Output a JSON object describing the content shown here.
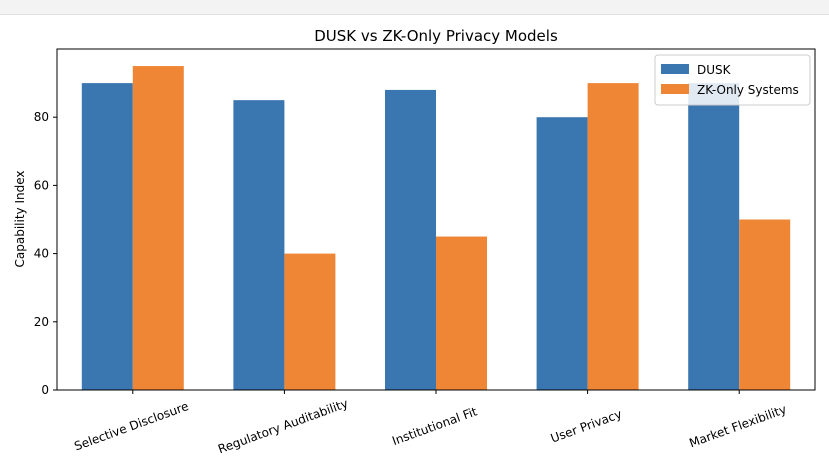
{
  "chart_data": {
    "type": "bar",
    "title": "DUSK vs ZK-Only Privacy Models",
    "xlabel": "",
    "ylabel": "Capability Index",
    "categories": [
      "Selective Disclosure",
      "Regulatory Auditability",
      "Institutional Fit",
      "User Privacy",
      "Market Flexibility"
    ],
    "series": [
      {
        "name": "DUSK",
        "color": "#3a76af",
        "values": [
          90,
          85,
          88,
          80,
          90
        ]
      },
      {
        "name": "ZK-Only Systems",
        "color": "#ef8636",
        "values": [
          95,
          40,
          45,
          90,
          50
        ]
      }
    ],
    "ylim": [
      0,
      100
    ],
    "yticks": [
      0,
      20,
      40,
      60,
      80
    ],
    "grid": false,
    "legend_position": "top-right"
  }
}
